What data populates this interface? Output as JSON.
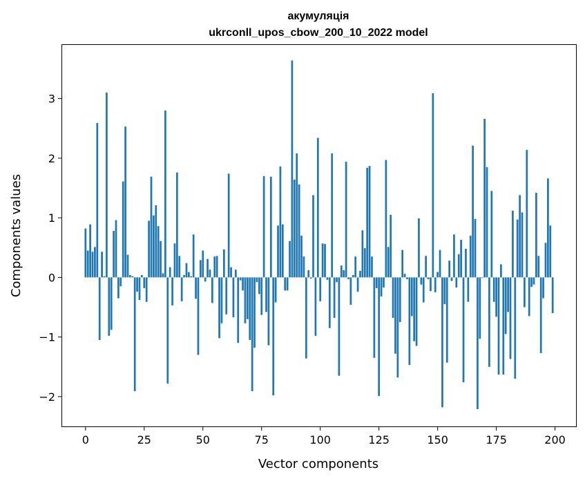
{
  "chart_data": {
    "type": "bar",
    "title_line1": "акумуляція",
    "title_line2": "ukrconll_upos_cbow_200_10_2022 model",
    "xlabel": "Vector components",
    "ylabel": "Components values",
    "xlim": [
      -9.95,
      208.95
    ],
    "ylim": [
      -2.5,
      3.9
    ],
    "x_ticks": [
      0,
      25,
      50,
      75,
      100,
      125,
      150,
      175,
      200
    ],
    "y_ticks": [
      -2,
      -1,
      0,
      1,
      2,
      3
    ],
    "x_tick_labels": [
      "0",
      "25",
      "50",
      "75",
      "100",
      "125",
      "150",
      "175",
      "200"
    ],
    "y_tick_labels": [
      "−2",
      "−1",
      "0",
      "1",
      "2",
      "3"
    ],
    "bar_color": "#1f77b4",
    "grid": false,
    "values": [
      0.82,
      0.45,
      0.89,
      0.43,
      0.51,
      2.59,
      -1.05,
      0.43,
      0.02,
      3.1,
      -0.98,
      -0.88,
      0.78,
      0.96,
      -0.35,
      -0.15,
      1.61,
      2.53,
      0.38,
      0.04,
      0.02,
      -1.91,
      -0.24,
      -0.38,
      0.04,
      -0.18,
      -0.41,
      0.95,
      1.69,
      1.04,
      1.21,
      0.86,
      0.61,
      0.07,
      2.8,
      -1.78,
      0.17,
      -0.47,
      0.57,
      1.76,
      0.36,
      -0.4,
      0.04,
      0.24,
      0.09,
      0.02,
      0.72,
      -0.36,
      -1.3,
      0.29,
      0.45,
      -0.07,
      0.31,
      0.13,
      -0.43,
      0.35,
      0.36,
      -1.02,
      -0.77,
      0.47,
      -0.62,
      1.74,
      0.17,
      -0.67,
      0.13,
      -1.1,
      -0.05,
      -0.22,
      -0.77,
      -0.7,
      -1.05,
      -1.91,
      -1.18,
      -0.08,
      -0.28,
      -0.63,
      1.7,
      -0.58,
      -1.14,
      1.69,
      -1.98,
      -0.42,
      0.87,
      1.86,
      0.89,
      -0.22,
      -0.22,
      0.61,
      3.64,
      1.64,
      2.08,
      1.56,
      0.7,
      0.35,
      -1.36,
      0.12,
      -0.02,
      1.38,
      -0.98,
      2.34,
      -0.4,
      0.57,
      0.56,
      -0.04,
      -0.85,
      2.08,
      -0.68,
      -0.08,
      -1.65,
      0.2,
      0.12,
      1.94,
      -0.03,
      -0.46,
      0.04,
      0.35,
      -0.24,
      0.11,
      0.79,
      0.49,
      1.84,
      1.87,
      0.35,
      -1.35,
      -0.18,
      -1.99,
      -0.32,
      -0.17,
      1.97,
      0.51,
      1.05,
      -0.68,
      -1.28,
      -1.68,
      -0.75,
      0.46,
      0.06,
      -0.03,
      -1.47,
      -0.65,
      -1.07,
      -1.15,
      0.99,
      -0.12,
      -0.42,
      0.36,
      -0.03,
      -0.23,
      3.09,
      -0.25,
      0.09,
      0.46,
      -2.18,
      -0.45,
      -1.43,
      0.28,
      -0.06,
      0.72,
      -0.17,
      0.39,
      0.63,
      -1.76,
      0.48,
      -0.41,
      0.7,
      2.21,
      0.98,
      -2.21,
      -1.03,
      -0.01,
      2.66,
      1.85,
      -1.5,
      1.45,
      -0.41,
      -0.66,
      -1.63,
      0.22,
      -1.63,
      -0.95,
      -0.58,
      -1.37,
      1.12,
      -1.7,
      0.97,
      1.38,
      1.09,
      -0.5,
      2.14,
      -0.65,
      -0.16,
      -0.12,
      1.42,
      0.36,
      -1.27,
      -0.35,
      0.58,
      1.66,
      0.87,
      -0.6
    ]
  }
}
